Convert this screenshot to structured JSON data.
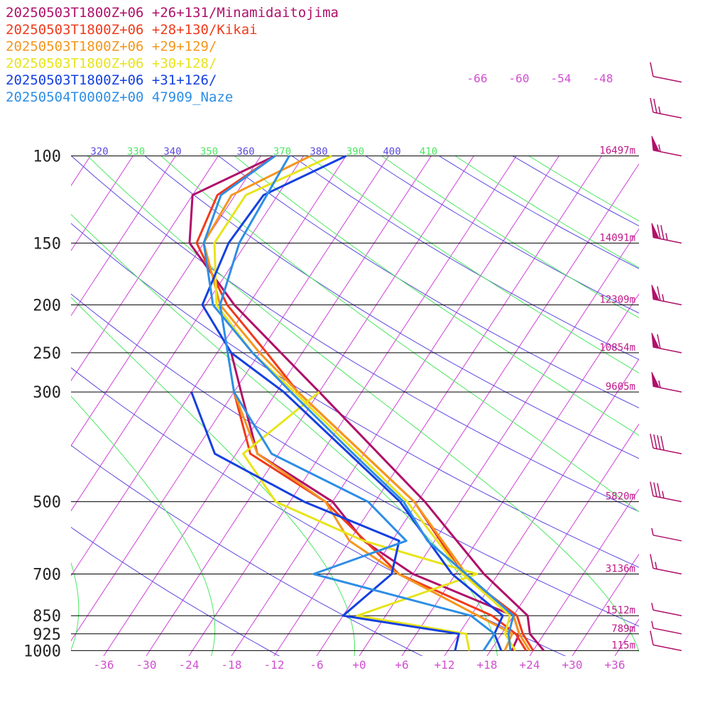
{
  "legend": [
    {
      "text": "20250503T1800Z+06 +26+131/Minamidaitojima",
      "color": "#b0106a"
    },
    {
      "text": "20250503T1800Z+06 +28+130/Kikai",
      "color": "#f03a1c"
    },
    {
      "text": "20250503T1800Z+06 +29+129/",
      "color": "#f5961c"
    },
    {
      "text": "20250503T1800Z+06 +30+128/",
      "color": "#e8e41a"
    },
    {
      "text": "20250503T1800Z+06 +31+126/",
      "color": "#1440e0"
    },
    {
      "text": "20250504T0000Z+00 47909_Naze",
      "color": "#2e8ee6"
    }
  ],
  "colors": {
    "isotherm": "#d040d8",
    "theta": "#5a48e0",
    "theta_e": "#4ae860",
    "pressure_line": "#000000",
    "wind_barb": "#b0106a"
  },
  "chart_data": {
    "type": "line",
    "title": "",
    "xlabel": "",
    "ylabel": "",
    "pressure_levels": [
      {
        "p": 100,
        "label": "100",
        "height": "16497m"
      },
      {
        "p": 150,
        "label": "150",
        "height": "14091m"
      },
      {
        "p": 200,
        "label": "200",
        "height": "12309m"
      },
      {
        "p": 250,
        "label": "250",
        "height": "10854m"
      },
      {
        "p": 300,
        "label": "300",
        "height": "9605m"
      },
      {
        "p": 500,
        "label": "500",
        "height": "5820m"
      },
      {
        "p": 700,
        "label": "700",
        "height": "3136m"
      },
      {
        "p": 850,
        "label": "850",
        "height": "1512m"
      },
      {
        "p": 925,
        "label": "925",
        "height": "789m"
      },
      {
        "p": 1000,
        "label": "1000",
        "height": "115m"
      }
    ],
    "temperature_ticks": [
      "-36",
      "-30",
      "-24",
      "-18",
      "-12",
      "-6",
      "+0",
      "+6",
      "+12",
      "+18",
      "+24",
      "+30",
      "+36"
    ],
    "isotherm_top_labels": [
      "-66",
      "-60",
      "-54",
      "-48"
    ],
    "theta_labels": [
      {
        "text": "320",
        "kind": "theta"
      },
      {
        "text": "330",
        "kind": "theta_e"
      },
      {
        "text": "340",
        "kind": "theta"
      },
      {
        "text": "350",
        "kind": "theta_e"
      },
      {
        "text": "360",
        "kind": "theta"
      },
      {
        "text": "370",
        "kind": "theta_e"
      },
      {
        "text": "380",
        "kind": "theta"
      },
      {
        "text": "390",
        "kind": "theta_e"
      },
      {
        "text": "400",
        "kind": "theta"
      },
      {
        "text": "410",
        "kind": "theta_e"
      }
    ],
    "series": [
      {
        "name": "20250503T1800Z+06 +26+131/Minamidaitojima",
        "temperature": [
          [
            1000,
            25.5
          ],
          [
            925,
            22.0
          ],
          [
            850,
            20.0
          ],
          [
            700,
            10.0
          ],
          [
            500,
            -5.0
          ],
          [
            300,
            -30.0
          ],
          [
            250,
            -39.0
          ],
          [
            200,
            -50.0
          ],
          [
            150,
            -62.0
          ],
          [
            120,
            -66.0
          ],
          [
            100,
            -58.0
          ]
        ],
        "dewpoint": [
          [
            1000,
            21.0
          ],
          [
            925,
            20.5
          ],
          [
            850,
            18.0
          ],
          [
            700,
            0.0
          ],
          [
            600,
            -10.0
          ],
          [
            500,
            -18.0
          ],
          [
            400,
            -33.0
          ],
          [
            300,
            -41.0
          ],
          [
            250,
            -46.0
          ]
        ]
      },
      {
        "name": "20250503T1800Z+06 +28+130/Kikai",
        "temperature": [
          [
            1000,
            24.0
          ],
          [
            925,
            21.0
          ],
          [
            850,
            18.5
          ],
          [
            700,
            7.0
          ],
          [
            500,
            -6.5
          ],
          [
            300,
            -33.0
          ],
          [
            250,
            -41.0
          ],
          [
            200,
            -51.0
          ],
          [
            150,
            -61.0
          ],
          [
            120,
            -62.5
          ],
          [
            100,
            -58.0
          ]
        ],
        "dewpoint": [
          [
            1000,
            23.0
          ],
          [
            925,
            20.0
          ],
          [
            850,
            15.0
          ],
          [
            700,
            -2.0
          ],
          [
            500,
            -19.0
          ],
          [
            400,
            -34.0
          ],
          [
            300,
            -42.0
          ]
        ]
      },
      {
        "name": "20250503T1800Z+06 +29+129/",
        "temperature": [
          [
            1000,
            23.5
          ],
          [
            925,
            20.5
          ],
          [
            850,
            18.0
          ],
          [
            700,
            7.5
          ],
          [
            500,
            -6.5
          ],
          [
            300,
            -33.0
          ],
          [
            250,
            -42.0
          ],
          [
            200,
            -52.0
          ],
          [
            150,
            -60.0
          ],
          [
            120,
            -60.5
          ],
          [
            100,
            -53.0
          ]
        ],
        "dewpoint": [
          [
            1000,
            20.0
          ],
          [
            925,
            19.5
          ],
          [
            850,
            13.0
          ],
          [
            700,
            -2.0
          ],
          [
            600,
            -12.0
          ],
          [
            500,
            -19.0
          ],
          [
            400,
            -33.0
          ],
          [
            300,
            -42.0
          ]
        ]
      },
      {
        "name": "20250503T1800Z+06 +30+128/",
        "temperature": [
          [
            1000,
            21.5
          ],
          [
            925,
            18.5
          ],
          [
            850,
            17.5
          ],
          [
            700,
            7.0
          ],
          [
            500,
            -7.5
          ],
          [
            300,
            -33.5
          ],
          [
            250,
            -43.0
          ],
          [
            200,
            -52.5
          ],
          [
            150,
            -58.5
          ],
          [
            120,
            -58.5
          ],
          [
            100,
            -50.0
          ]
        ],
        "dewpoint": [
          [
            1000,
            15.0
          ],
          [
            925,
            13.0
          ],
          [
            850,
            -4.0
          ],
          [
            700,
            9.0
          ],
          [
            600,
            -10.0
          ],
          [
            500,
            -26.0
          ],
          [
            400,
            -35.0
          ],
          [
            300,
            -30.0
          ]
        ]
      },
      {
        "name": "20250503T1800Z+06 +31+126/",
        "temperature": [
          [
            1000,
            19.5
          ],
          [
            925,
            17.0
          ],
          [
            850,
            16.5
          ],
          [
            700,
            5.5
          ],
          [
            500,
            -8.5
          ],
          [
            300,
            -35.0
          ],
          [
            250,
            -46.0
          ],
          [
            200,
            -54.5
          ],
          [
            150,
            -56.5
          ],
          [
            120,
            -56.0
          ],
          [
            100,
            -48.0
          ]
        ],
        "dewpoint": [
          [
            1000,
            13.0
          ],
          [
            925,
            12.0
          ],
          [
            850,
            -6.0
          ],
          [
            700,
            -3.0
          ],
          [
            600,
            -5.0
          ],
          [
            500,
            -22.0
          ],
          [
            400,
            -39.0
          ],
          [
            300,
            -48.0
          ]
        ]
      },
      {
        "name": "20250504T0000Z+00 47909_Naze",
        "temperature": [
          [
            1000,
            20.8
          ],
          [
            925,
            19.0
          ],
          [
            850,
            18.0
          ],
          [
            700,
            7.5
          ],
          [
            600,
            -1.0
          ],
          [
            500,
            -8.0
          ],
          [
            400,
            -19.5
          ],
          [
            300,
            -34.0
          ],
          [
            250,
            -43.0
          ],
          [
            200,
            -53.0
          ],
          [
            150,
            -60.0
          ],
          [
            120,
            -62.0
          ],
          [
            100,
            -58.0
          ]
        ],
        "dewpoint": [
          [
            1000,
            17.0
          ],
          [
            925,
            17.0
          ],
          [
            850,
            12.0
          ],
          [
            700,
            -14.0
          ],
          [
            600,
            -4.0
          ],
          [
            500,
            -13.0
          ],
          [
            400,
            -31.0
          ],
          [
            300,
            -42.0
          ],
          [
            200,
            -52.0
          ],
          [
            150,
            -55.0
          ],
          [
            100,
            -56.0
          ]
        ]
      }
    ],
    "wind_barbs": [
      {
        "p": 1000,
        "speed_kt": 10
      },
      {
        "p": 925,
        "speed_kt": 5
      },
      {
        "p": 850,
        "speed_kt": 5
      },
      {
        "p": 700,
        "speed_kt": 15
      },
      {
        "p": 600,
        "speed_kt": 5
      },
      {
        "p": 500,
        "speed_kt": 35
      },
      {
        "p": 400,
        "speed_kt": 40
      },
      {
        "p": 300,
        "speed_kt": 55
      },
      {
        "p": 250,
        "speed_kt": 60
      },
      {
        "p": 200,
        "speed_kt": 65
      },
      {
        "p": 150,
        "speed_kt": 75
      },
      {
        "p": 100,
        "speed_kt": 55
      },
      {
        "p": 70,
        "speed_kt": 25
      },
      {
        "p": 50,
        "speed_kt": 10
      }
    ]
  }
}
